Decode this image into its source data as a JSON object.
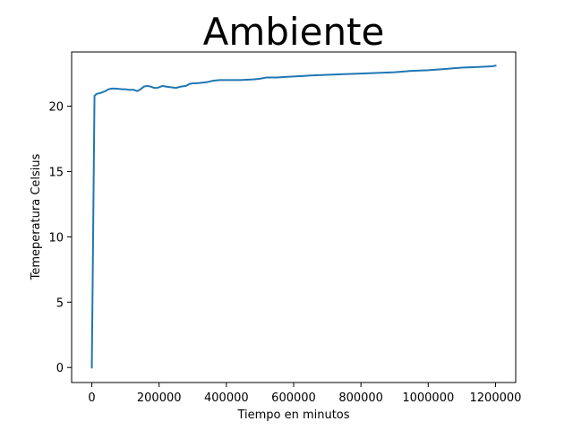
{
  "chart_data": {
    "type": "line",
    "title": "Ambiente",
    "xlabel": "Tiempo en minutos",
    "ylabel": "Temeperatura Celsius",
    "xlim": [
      -60000,
      1260000
    ],
    "ylim": [
      -1.15,
      24.15
    ],
    "xticks": [
      0,
      200000,
      400000,
      600000,
      800000,
      1000000,
      1200000
    ],
    "xtick_labels": [
      "0",
      "200000",
      "400000",
      "600000",
      "800000",
      "1000000",
      "1200000"
    ],
    "yticks": [
      0,
      5,
      10,
      15,
      20
    ],
    "ytick_labels": [
      "0",
      "5",
      "10",
      "15",
      "20"
    ],
    "grid": false,
    "legend": "none",
    "series": [
      {
        "color": "#1f77b4",
        "x": [
          0,
          8000,
          15000,
          25000,
          40000,
          50000,
          60000,
          70000,
          90000,
          100000,
          110000,
          125000,
          135000,
          145000,
          155000,
          165000,
          175000,
          185000,
          195000,
          210000,
          220000,
          235000,
          250000,
          265000,
          280000,
          290000,
          300000,
          310000,
          330000,
          345000,
          360000,
          380000,
          400000,
          440000,
          480000,
          500000,
          520000,
          550000,
          580000,
          620000,
          650000,
          700000,
          750000,
          800000,
          850000,
          900000,
          950000,
          1000000,
          1050000,
          1100000,
          1150000,
          1190000,
          1200000
        ],
        "y": [
          0,
          20.8,
          20.95,
          21.0,
          21.15,
          21.3,
          21.35,
          21.35,
          21.3,
          21.3,
          21.25,
          21.25,
          21.15,
          21.3,
          21.5,
          21.55,
          21.5,
          21.4,
          21.4,
          21.55,
          21.5,
          21.45,
          21.4,
          21.5,
          21.55,
          21.7,
          21.75,
          21.75,
          21.8,
          21.85,
          21.95,
          22.0,
          22.0,
          22.0,
          22.05,
          22.1,
          22.2,
          22.2,
          22.25,
          22.3,
          22.35,
          22.4,
          22.45,
          22.5,
          22.55,
          22.6,
          22.7,
          22.75,
          22.85,
          22.95,
          23.0,
          23.05,
          23.1
        ]
      }
    ]
  }
}
